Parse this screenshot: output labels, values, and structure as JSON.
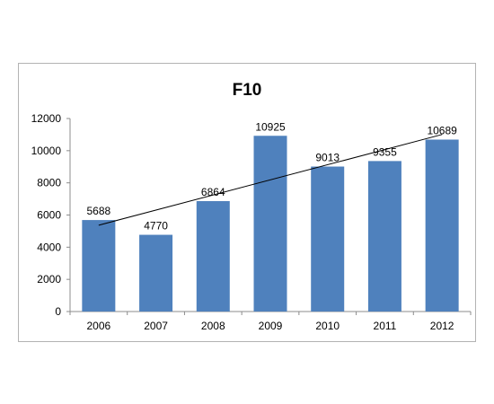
{
  "chart_data": {
    "type": "bar",
    "title": "F10",
    "categories": [
      "2006",
      "2007",
      "2008",
      "2009",
      "2010",
      "2011",
      "2012"
    ],
    "values": [
      5688,
      4770,
      6864,
      10925,
      9013,
      9355,
      10689
    ],
    "ylim": [
      0,
      12000
    ],
    "yticks": [
      0,
      2000,
      4000,
      6000,
      8000,
      10000,
      12000
    ],
    "xlabel": "",
    "ylabel": "",
    "grid": false,
    "legend": "none",
    "data_labels": true,
    "trendline": "linear",
    "colors": {
      "bar": "#4F81BD",
      "trendline": "#000000",
      "axis": "#8c8c8c",
      "frame": "#b3b3b3"
    }
  }
}
